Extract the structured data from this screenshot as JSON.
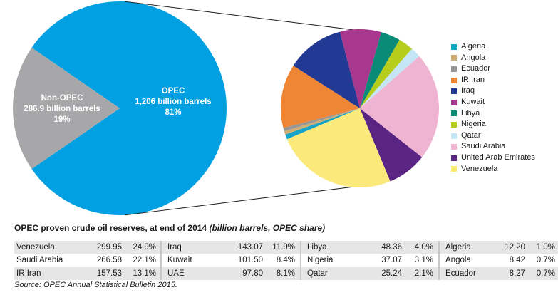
{
  "chart_data": [
    {
      "type": "pie",
      "slices": [
        {
          "label": "OPEC",
          "value_text": "1,206 billion barrels",
          "share_text": "81%",
          "value": 1206,
          "color": "#00a0e3"
        },
        {
          "label": "Non-OPEC",
          "value_text": "286.9 billion barrels",
          "share_text": "19%",
          "value": 286.9,
          "color": "#a7a7a9"
        }
      ]
    },
    {
      "type": "pie",
      "slices": [
        {
          "label": "Algeria",
          "value": 12.2,
          "color": "#15a3c8"
        },
        {
          "label": "Angola",
          "value": 8.42,
          "color": "#cfae74"
        },
        {
          "label": "Ecuador",
          "value": 8.27,
          "color": "#969696"
        },
        {
          "label": "IR Iran",
          "value": 157.53,
          "color": "#ef8636"
        },
        {
          "label": "Iraq",
          "value": 143.07,
          "color": "#233a94"
        },
        {
          "label": "Kuwait",
          "value": 101.5,
          "color": "#a8378e"
        },
        {
          "label": "Libya",
          "value": 48.36,
          "color": "#0a8b78"
        },
        {
          "label": "Nigeria",
          "value": 37.07,
          "color": "#b6cd1c"
        },
        {
          "label": "Qatar",
          "value": 25.24,
          "color": "#c5e6f6"
        },
        {
          "label": "Saudi Arabia",
          "value": 266.58,
          "color": "#efb4d2"
        },
        {
          "label": "United Arab Emirates",
          "value": 97.8,
          "color": "#5a2483"
        },
        {
          "label": "Venezuela",
          "value": 299.95,
          "color": "#fbea7b"
        }
      ]
    }
  ],
  "table": {
    "title": "OPEC proven crude oil reserves, at end of 2014",
    "title_italic": "(billion barrels, OPEC share)",
    "groups": [
      [
        {
          "country": "Venezuela",
          "value": "299.95",
          "share": "24.9%"
        },
        {
          "country": "Saudi Arabia",
          "value": "266.58",
          "share": "22.1%"
        },
        {
          "country": "IR Iran",
          "value": "157.53",
          "share": "13.1%"
        }
      ],
      [
        {
          "country": "Iraq",
          "value": "143.07",
          "share": "11.9%"
        },
        {
          "country": "Kuwait",
          "value": "101.50",
          "share": "8.4%"
        },
        {
          "country": "UAE",
          "value": "97.80",
          "share": "8.1%"
        }
      ],
      [
        {
          "country": "Libya",
          "value": "48.36",
          "share": "4.0%"
        },
        {
          "country": "Nigeria",
          "value": "37.07",
          "share": "3.1%"
        },
        {
          "country": "Qatar",
          "value": "25.24",
          "share": "2.1%"
        }
      ],
      [
        {
          "country": "Algeria",
          "value": "12.20",
          "share": "1.0%"
        },
        {
          "country": "Angola",
          "value": "8.42",
          "share": "0.7%"
        },
        {
          "country": "Ecuador",
          "value": "8.27",
          "share": "0.7%"
        }
      ]
    ]
  },
  "source": "Source: OPEC Annual Statistical Bulletin 2015.",
  "colors": {
    "connector": "#1a1a1a",
    "row_shade": "#e6e6e6",
    "group_divider": "#c8c8c8"
  }
}
